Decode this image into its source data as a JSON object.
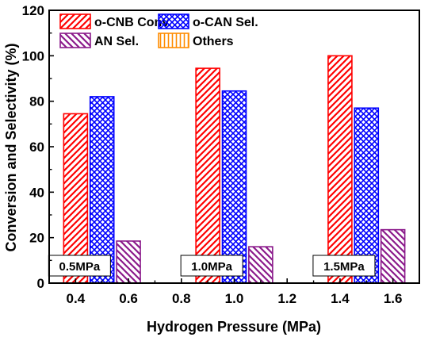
{
  "chart_data": {
    "type": "bar",
    "xlabel": "Hydrogen Pressure (MPa)",
    "ylabel": "Conversion and Selectivity (%)",
    "xlim": [
      0.3,
      1.7
    ],
    "ylim": [
      0,
      120
    ],
    "xticks": [
      "0.4",
      "0.6",
      "0.8",
      "1.0",
      "1.2",
      "1.4",
      "1.6"
    ],
    "yticks": [
      "0",
      "20",
      "40",
      "60",
      "80",
      "100",
      "120"
    ],
    "grid": false,
    "legend_position": "top-left",
    "categories": [
      "0.5MPa",
      "1.0MPa",
      "1.5MPa"
    ],
    "series": [
      {
        "name": "o-CNB Conv.",
        "color": "#ff0000",
        "pattern": "diagonal",
        "x": [
          0.4,
          0.9,
          1.4
        ],
        "values": [
          74.5,
          94.5,
          100
        ]
      },
      {
        "name": "o-CAN Sel.",
        "color": "#0000ff",
        "pattern": "crosshatch",
        "x": [
          0.5,
          1.0,
          1.5
        ],
        "values": [
          82,
          84.5,
          77
        ]
      },
      {
        "name": "AN Sel.",
        "color": "#8b1a8b",
        "pattern": "diagonal-reverse",
        "x": [
          0.6,
          1.1,
          1.6
        ],
        "values": [
          18.5,
          16,
          23.5
        ]
      },
      {
        "name": "Others",
        "color": "#ff8c00",
        "pattern": "vertical",
        "x": [
          0.7,
          1.2,
          1.7
        ],
        "values": [
          0,
          0,
          0
        ]
      }
    ]
  }
}
